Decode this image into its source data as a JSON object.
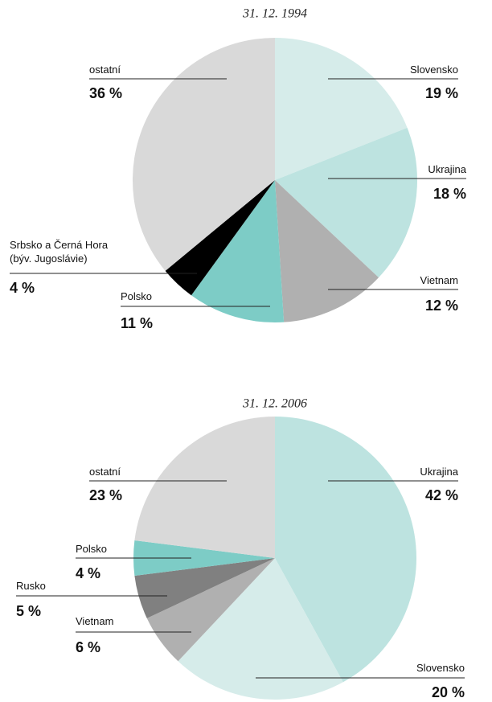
{
  "chart_data": [
    {
      "type": "pie",
      "title": "31. 12. 1994",
      "categories": [
        "Slovensko",
        "Ukrajina",
        "Vietnam",
        "Polsko",
        "Srbsko a Černá Hora (býv. Jugoslávie)",
        "ostatní"
      ],
      "values": [
        19,
        18,
        12,
        11,
        4,
        36
      ],
      "value_labels": [
        "19 %",
        "18 %",
        "12 %",
        "11 %",
        "4 %",
        "36 %"
      ],
      "colors": [
        "#d6ecea",
        "#bde3e0",
        "#b0b0b0",
        "#7dccc6",
        "#000000",
        "#d9d9d9"
      ]
    },
    {
      "type": "pie",
      "title": "31. 12. 2006",
      "categories": [
        "Ukrajina",
        "Slovensko",
        "Vietnam",
        "Rusko",
        "Polsko",
        "ostatní"
      ],
      "values": [
        42,
        20,
        6,
        5,
        4,
        23
      ],
      "value_labels": [
        "42 %",
        "20 %",
        "6 %",
        "5 %",
        "4 %",
        "23 %"
      ],
      "colors": [
        "#bde3e0",
        "#d6ecea",
        "#b0b0b0",
        "#808080",
        "#7dccc6",
        "#d9d9d9"
      ]
    }
  ]
}
